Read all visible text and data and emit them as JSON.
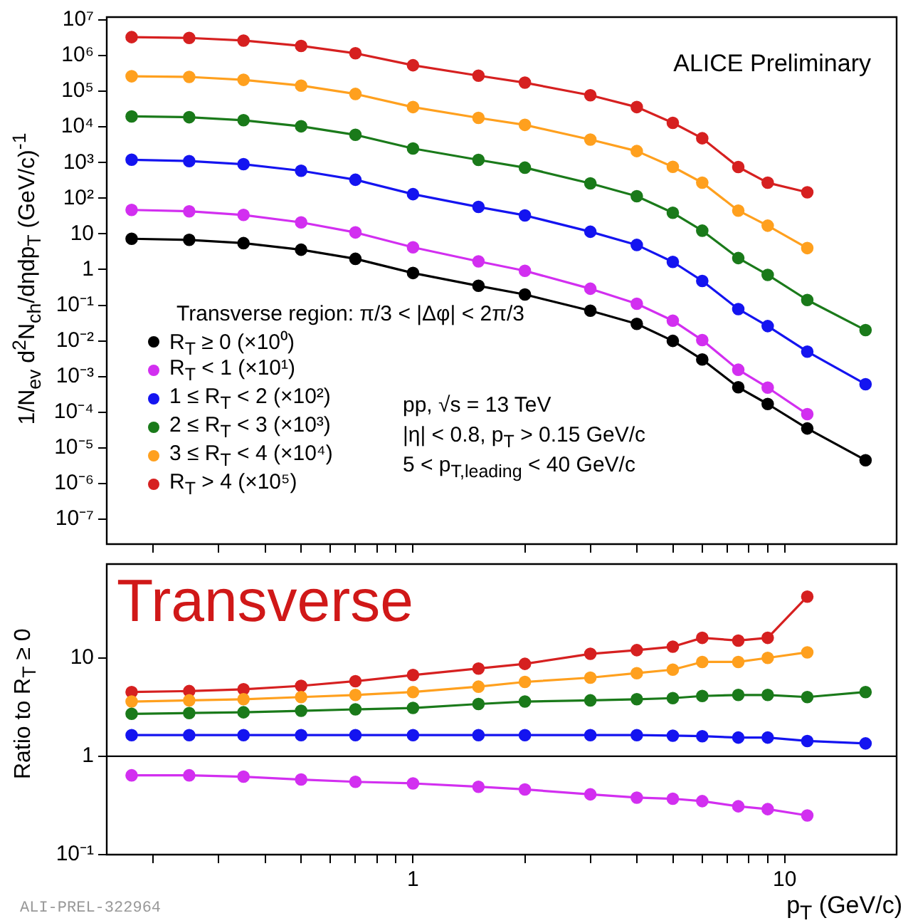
{
  "chart_data": [
    {
      "type": "line",
      "log": "xy",
      "marker": "circle",
      "legend": "bottom left",
      "tick_labels": "y",
      "legend_title": "Transverse region: π/3 < |Δφ| < 2π/3",
      "ylabel": "1/N$_{ev}$ d$^{2}$N$_{ch}$/dηdp$_{T}$ (GeV/c)$^{-1}$",
      "annotations": [
        "ALICE Preliminary",
        "pp, √s = 13 TeV",
        "|η| < 0.8, p$_{T}$ > 0.15 GeV/c",
        "5 < p$_{T,leading}$ < 40 GeV/c"
      ],
      "x": [
        0.175,
        0.25,
        0.35,
        0.5,
        0.7,
        1,
        1.5,
        2,
        3,
        4,
        5,
        6,
        7.5,
        9,
        11.5,
        16.5
      ],
      "xlim": [
        0.15,
        20
      ],
      "xticks": [
        {
          "value": 0.2,
          "label": null
        },
        {
          "value": 0.3,
          "label": null
        },
        {
          "value": 0.4,
          "label": null
        },
        {
          "value": 0.5,
          "label": null
        },
        {
          "value": 0.6,
          "label": null
        },
        {
          "value": 0.7,
          "label": null
        },
        {
          "value": 0.8,
          "label": null
        },
        {
          "value": 0.9,
          "label": null
        },
        {
          "value": 1,
          "label": null
        },
        {
          "value": 2,
          "label": null
        },
        {
          "value": 3,
          "label": null
        },
        {
          "value": 4,
          "label": null
        },
        {
          "value": 5,
          "label": null
        },
        {
          "value": 6,
          "label": null
        },
        {
          "value": 7,
          "label": null
        },
        {
          "value": 8,
          "label": null
        },
        {
          "value": 9,
          "label": null
        },
        {
          "value": 10,
          "label": null
        }
      ],
      "ylim": [
        2e-08,
        12000000.0
      ],
      "yticks": [
        {
          "value": 1e-07,
          "label": "10⁻⁷"
        },
        {
          "value": 1e-06,
          "label": "10⁻⁶"
        },
        {
          "value": 1e-05,
          "label": "10⁻⁵"
        },
        {
          "value": 0.0001,
          "label": "10⁻⁴"
        },
        {
          "value": 0.001,
          "label": "10⁻³"
        },
        {
          "value": 0.01,
          "label": "10⁻²"
        },
        {
          "value": 0.1,
          "label": "10⁻¹"
        },
        {
          "value": 1,
          "label": "1"
        },
        {
          "value": 10,
          "label": "10"
        },
        {
          "value": 100,
          "label": "10²"
        },
        {
          "value": 1000,
          "label": "10³"
        },
        {
          "value": 10000,
          "label": "10⁴"
        },
        {
          "value": 100000,
          "label": "10⁵"
        },
        {
          "value": 1000000,
          "label": "10⁶"
        },
        {
          "value": 10000000,
          "label": "10⁷"
        }
      ],
      "series": [
        {
          "name": "R$_{T}$ ≥ 0 (×10⁰)",
          "color": "#000000",
          "values": [
            7.3,
            6.8,
            5.5,
            3.6,
            2.0,
            0.8,
            0.35,
            0.2,
            0.07,
            0.03,
            0.01,
            0.003,
            0.0005,
            0.00017,
            3.5e-05,
            4.5e-06
          ]
        },
        {
          "name": "R$_{T}$ < 1 (×10¹)",
          "color": "#d22ff0",
          "values": [
            47,
            43,
            34,
            21,
            11,
            4.2,
            1.7,
            0.92,
            0.29,
            0.11,
            0.037,
            0.0105,
            0.00155,
            0.00049,
            8.8e-05,
            null
          ]
        },
        {
          "name": "1 ≤ R$_{T}$ < 2 (×10²)",
          "color": "#1414f0",
          "values": [
            1200,
            1100,
            900,
            590,
            330,
            130,
            57,
            33,
            11.5,
            4.9,
            1.64,
            0.48,
            0.078,
            0.026,
            0.005,
            0.00061
          ]
        },
        {
          "name": "2 ≤ R$_{T}$ < 3 (×10³)",
          "color": "#1a7a1a",
          "values": [
            19700,
            18700,
            15400,
            10400,
            6000,
            2480,
            1190,
            720,
            260,
            114,
            39,
            12.3,
            2.1,
            0.71,
            0.14,
            0.02
          ]
        },
        {
          "name": "3 ≤ R$_{T}$ < 4 (×10⁴)",
          "color": "#ffa01e",
          "values": [
            263000,
            252000,
            209000,
            144000,
            84000,
            36000,
            17900,
            11400,
            4400,
            2100,
            760,
            273,
            45,
            17,
            4,
            null
          ]
        },
        {
          "name": "R$_{T}$ > 4 (×10⁵)",
          "color": "#d62020",
          "values": [
            3290000,
            3130000,
            2640000,
            1870000,
            1160000,
            536000,
            273000,
            174000,
            77000,
            36000,
            13000,
            4800,
            750,
            272,
            147,
            null
          ]
        }
      ]
    },
    {
      "type": "line",
      "log": "xy",
      "marker": "circle",
      "xlabel": "p$_{T}$ (GeV/c)",
      "ylabel": "Ratio to R$_{T}$ ≥ 0",
      "annotations": [
        "Transverse",
        "ALI-PREL-322964"
      ],
      "x": [
        0.175,
        0.25,
        0.35,
        0.5,
        0.7,
        1,
        1.5,
        2,
        3,
        4,
        5,
        6,
        7.5,
        9,
        11.5,
        16.5
      ],
      "xlim": [
        0.15,
        20
      ],
      "xticks": [
        {
          "value": 0.2,
          "label": null
        },
        {
          "value": 0.3,
          "label": null
        },
        {
          "value": 0.4,
          "label": null
        },
        {
          "value": 0.5,
          "label": null
        },
        {
          "value": 0.6,
          "label": null
        },
        {
          "value": 0.7,
          "label": null
        },
        {
          "value": 0.8,
          "label": null
        },
        {
          "value": 0.9,
          "label": null
        },
        {
          "value": 1,
          "label": "1"
        },
        {
          "value": 2,
          "label": null
        },
        {
          "value": 3,
          "label": null
        },
        {
          "value": 4,
          "label": null
        },
        {
          "value": 5,
          "label": null
        },
        {
          "value": 6,
          "label": null
        },
        {
          "value": 7,
          "label": null
        },
        {
          "value": 8,
          "label": null
        },
        {
          "value": 9,
          "label": null
        },
        {
          "value": 10,
          "label": "10"
        }
      ],
      "ylim": [
        0.1,
        90
      ],
      "yticks": [
        {
          "value": 0.1,
          "label": "10⁻¹"
        },
        {
          "value": 1,
          "label": "1"
        },
        {
          "value": 10,
          "label": "10"
        }
      ],
      "ref_lines": [
        {
          "axis": "y",
          "value": 1,
          "color": "#000000"
        }
      ],
      "series": [
        {
          "color": "#d22ff0",
          "values": [
            0.64,
            0.64,
            0.62,
            0.58,
            0.55,
            0.53,
            0.49,
            0.46,
            0.41,
            0.38,
            0.37,
            0.35,
            0.31,
            0.29,
            0.25,
            null
          ]
        },
        {
          "color": "#1414f0",
          "values": [
            1.64,
            1.64,
            1.64,
            1.64,
            1.64,
            1.64,
            1.64,
            1.64,
            1.64,
            1.64,
            1.62,
            1.6,
            1.55,
            1.55,
            1.43,
            1.35
          ]
        },
        {
          "color": "#1a7a1a",
          "values": [
            2.7,
            2.75,
            2.8,
            2.9,
            3.0,
            3.1,
            3.4,
            3.6,
            3.7,
            3.8,
            3.9,
            4.1,
            4.2,
            4.2,
            4.0,
            4.5
          ]
        },
        {
          "color": "#ffa01e",
          "values": [
            3.6,
            3.7,
            3.8,
            4.0,
            4.2,
            4.5,
            5.1,
            5.7,
            6.3,
            7,
            7.6,
            9.1,
            9.1,
            10,
            11.4,
            null
          ]
        },
        {
          "color": "#d62020",
          "values": [
            4.5,
            4.6,
            4.8,
            5.2,
            5.8,
            6.7,
            7.8,
            8.7,
            11,
            12,
            13,
            16,
            15,
            16,
            42,
            null
          ]
        }
      ]
    }
  ]
}
